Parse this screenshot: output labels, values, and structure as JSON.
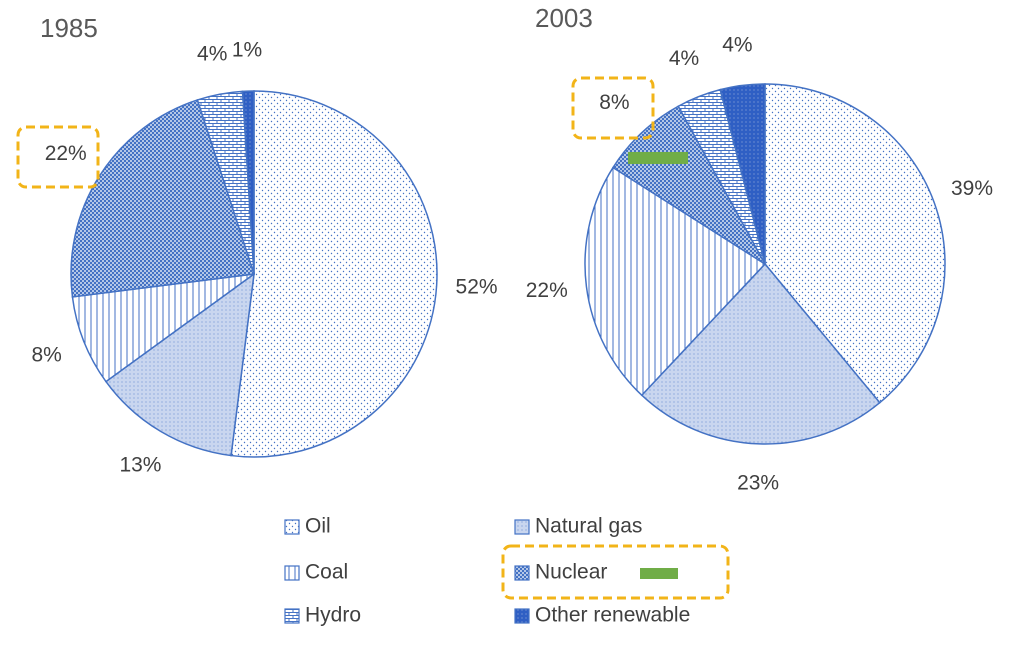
{
  "chart_data": [
    {
      "type": "pie",
      "title": "1985",
      "categories": [
        "Oil",
        "Natural gas",
        "Coal",
        "Nuclear",
        "Hydro",
        "Other renewable"
      ],
      "values": [
        52,
        13,
        8,
        22,
        4,
        1
      ],
      "value_labels": [
        "52%",
        "13%",
        "8%",
        "22%",
        "4%",
        "1%"
      ],
      "color": "#4472c4"
    },
    {
      "type": "pie",
      "title": "2003",
      "categories": [
        "Oil",
        "Natural gas",
        "Coal",
        "Nuclear",
        "Hydro",
        "Other renewable"
      ],
      "values": [
        39,
        23,
        22,
        8,
        4,
        4
      ],
      "value_labels": [
        "39%",
        "23%",
        "22%",
        "8%",
        "4%",
        "4%"
      ],
      "color": "#4472c4"
    }
  ]
}
